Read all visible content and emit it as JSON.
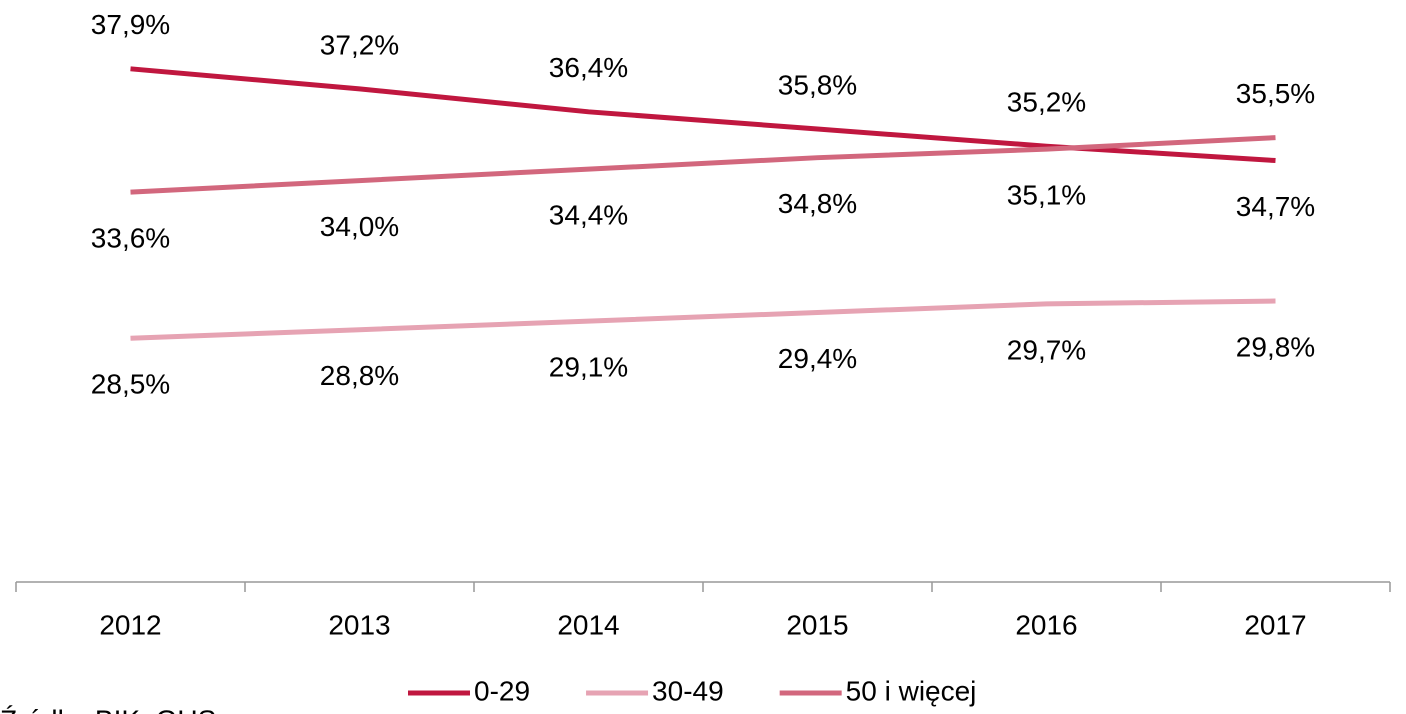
{
  "chart_data": {
    "type": "line",
    "categories": [
      "2012",
      "2013",
      "2014",
      "2015",
      "2016",
      "2017"
    ],
    "series": [
      {
        "name": "0-29",
        "color": "#c0173f",
        "values": [
          37.9,
          37.2,
          36.4,
          35.8,
          35.2,
          34.7
        ],
        "value_labels": [
          "37,9%",
          "37,2%",
          "36,4%",
          "35,8%",
          "35,2%",
          "34,7%"
        ]
      },
      {
        "name": "30-49",
        "color": "#e6a3b3",
        "values": [
          28.5,
          28.8,
          29.1,
          29.4,
          29.7,
          29.8
        ],
        "value_labels": [
          "28,5%",
          "28,8%",
          "29,1%",
          "29,4%",
          "29,7%",
          "29,8%"
        ]
      },
      {
        "name": "50 i więcej",
        "color": "#d2677d",
        "values": [
          33.6,
          34.0,
          34.4,
          34.8,
          35.1,
          35.5
        ],
        "value_labels": [
          "33,6%",
          "34,0%",
          "34,4%",
          "34,8%",
          "35,1%",
          "35,5%"
        ]
      }
    ],
    "ylim": [
      20,
      40.3
    ],
    "source": "Źródło: BIK, GUS"
  }
}
